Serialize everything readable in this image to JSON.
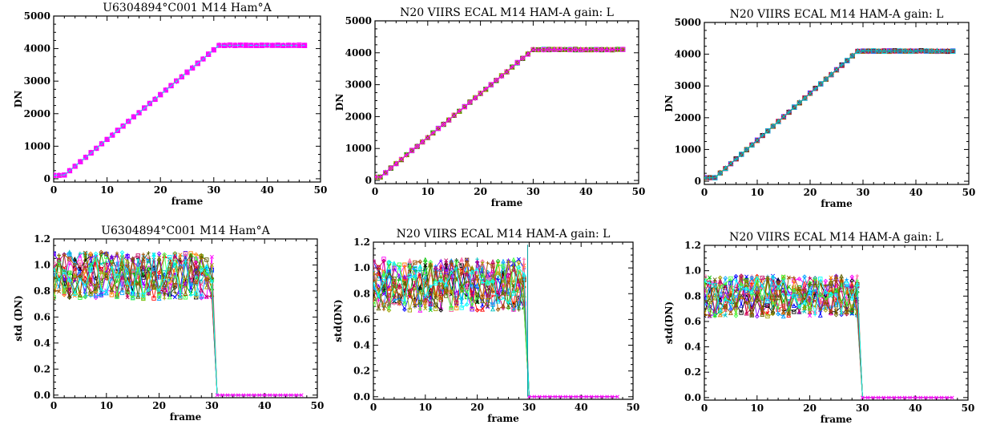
{
  "chart_data": [
    {
      "type": "line",
      "title": "U6304894°C001 M14 Ham°A",
      "xlabel": "frame",
      "ylabel": "DN",
      "xlim": [
        0,
        50
      ],
      "ylim": [
        -100,
        5000
      ],
      "xticks": [
        "0",
        "10",
        "20",
        "30",
        "40",
        "50"
      ],
      "yticks": [
        "0",
        "1000",
        "2000",
        "3000",
        "4000",
        "5000"
      ],
      "pattern": {
        "base": 110,
        "flat_until": 2,
        "rise_end": 31,
        "sat": 4100,
        "last": 47
      },
      "grid": false
    },
    {
      "type": "line",
      "title": "N20 VIIRS ECAL M14 HAM-A gain: L",
      "xlabel": "frame",
      "ylabel": "DN",
      "xlim": [
        0,
        50
      ],
      "ylim": [
        -100,
        5000
      ],
      "xticks": [
        "0",
        "10",
        "20",
        "30",
        "40",
        "50"
      ],
      "yticks": [
        "0",
        "1000",
        "2000",
        "3000",
        "4000",
        "5000"
      ],
      "pattern": {
        "base": 110,
        "flat_until": 1,
        "rise_end": 30,
        "sat": 4100,
        "last": 47
      },
      "grid": false
    },
    {
      "type": "line",
      "title": "N20 VIIRS ECAL M14 HAM-A gain: L",
      "xlabel": "frame",
      "ylabel": "DN",
      "xlim": [
        0,
        50
      ],
      "ylim": [
        -100,
        5000
      ],
      "xticks": [
        "0",
        "10",
        "20",
        "30",
        "40",
        "50"
      ],
      "yticks": [
        "0",
        "1000",
        "2000",
        "3000",
        "4000",
        "5000"
      ],
      "pattern": {
        "base": 110,
        "flat_until": 2,
        "rise_end": 29,
        "sat": 4100,
        "last": 47
      },
      "grid": false
    },
    {
      "type": "line",
      "title": "U6304894°C001 M14 Ham°A",
      "xlabel": "frame",
      "ylabel": "std (DN)",
      "xlim": [
        0,
        50
      ],
      "ylim": [
        -0.02,
        1.2
      ],
      "xticks": [
        "0",
        "10",
        "20",
        "30",
        "40",
        "50"
      ],
      "yticks": [
        "0.0",
        "0.2",
        "0.4",
        "0.6",
        "0.8",
        "1.0",
        "1.2"
      ],
      "pattern": {
        "mean": 0.92,
        "spread": 0.18,
        "last_noise": 30,
        "drop_at": 31,
        "last": 47,
        "spike": null
      },
      "grid": false
    },
    {
      "type": "line",
      "title": "N20 VIIRS ECAL M14 HAM-A gain: L",
      "xlabel": "frame",
      "ylabel": "std(DN)",
      "xlim": [
        0,
        50
      ],
      "ylim": [
        -0.02,
        1.2
      ],
      "xticks": [
        "0",
        "10",
        "20",
        "30",
        "40",
        "50"
      ],
      "yticks": [
        "0.0",
        "0.2",
        "0.4",
        "0.6",
        "0.8",
        "1.0",
        "1.2"
      ],
      "pattern": {
        "mean": 0.87,
        "spread": 0.2,
        "last_noise": 29,
        "drop_at": 30,
        "last": 47,
        "spike": 1.18
      },
      "grid": false
    },
    {
      "type": "line",
      "title": "N20 VIIRS ECAL M14 HAM-A gain: L",
      "xlabel": "frame",
      "ylabel": "std(DN)",
      "xlim": [
        0,
        50
      ],
      "ylim": [
        -0.02,
        1.2
      ],
      "xticks": [
        "0",
        "10",
        "20",
        "30",
        "40",
        "50"
      ],
      "yticks": [
        "0.0",
        "0.2",
        "0.4",
        "0.6",
        "0.8",
        "1.0",
        "1.2"
      ],
      "pattern": {
        "mean": 0.8,
        "spread": 0.16,
        "last_noise": 29,
        "drop_at": 30,
        "last": 47,
        "spike": null
      },
      "grid": false
    }
  ],
  "colors": [
    "#ff00ff",
    "#00c0c0",
    "#0000ff",
    "#ff0000",
    "#00c000",
    "#000000",
    "#ff8000",
    "#ff60a0",
    "#8000ff",
    "#00a0ff",
    "#a0a000",
    "#c00060",
    "#40ff40",
    "#606000",
    "#a05000",
    "#00ffff"
  ]
}
